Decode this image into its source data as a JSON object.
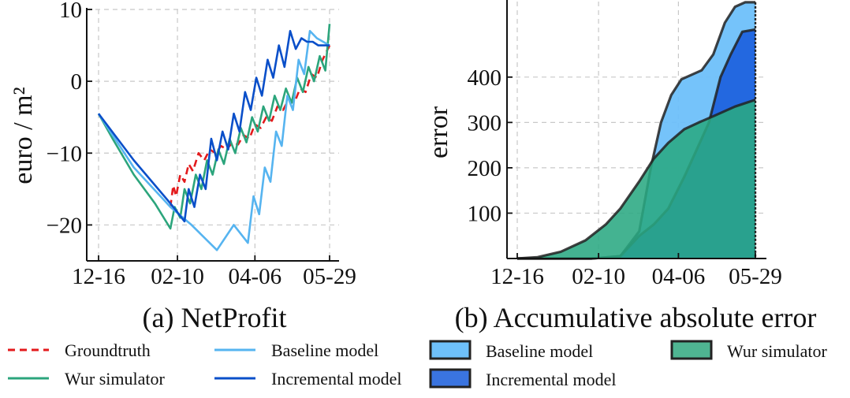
{
  "captions": {
    "a": "(a) NetProfit",
    "b": "(b) Accumulative absolute error"
  },
  "colors": {
    "groundtruth": "#e31a1c",
    "wur": "#2ca57c",
    "baseline": "#56b4f0",
    "incremental": "#0a4fc9",
    "area_baseline": "#6ec0fa",
    "area_incremental": "#1f63de",
    "area_wur": "#2aa882"
  },
  "legend": [
    {
      "label": "Groundtruth",
      "kind": "line",
      "color": "#e31a1c",
      "dash": true
    },
    {
      "label": "Wur simulator",
      "kind": "line",
      "color": "#2ca57c",
      "dash": false
    },
    {
      "label": "Baseline model",
      "kind": "line",
      "color": "#56b4f0",
      "dash": false
    },
    {
      "label": "Incremental model",
      "kind": "line",
      "color": "#0a4fc9",
      "dash": false
    },
    {
      "label": "Baseline model",
      "kind": "patch",
      "color": "#6ec0fa"
    },
    {
      "label": "Incremental model",
      "kind": "patch",
      "color": "#3a74e0"
    },
    {
      "label": "Wur simulator",
      "kind": "patch",
      "color": "#4fb592"
    }
  ],
  "chart_data": [
    {
      "type": "line",
      "title": "(a) NetProfit",
      "ylabel": "euro / m²",
      "xlabel": "",
      "x_ticks": [
        "12-16",
        "02-10",
        "04-06",
        "05-29"
      ],
      "x_range": [
        "12-16",
        "05-29"
      ],
      "ylim": [
        -25,
        10
      ],
      "y_ticks": [
        10,
        0,
        -10,
        -20
      ],
      "y_tick_labels": [
        "10",
        "0",
        "−10",
        "−20"
      ],
      "grid": true,
      "series": [
        {
          "name": "Groundtruth",
          "style": "dashed",
          "x": [
            "02-05",
            "02-07",
            "02-09",
            "02-12",
            "02-15",
            "02-18",
            "02-21",
            "02-25",
            "03-01",
            "03-05",
            "03-09",
            "03-13",
            "03-17",
            "03-21",
            "03-25",
            "03-29",
            "04-02",
            "04-06",
            "04-10",
            "04-14",
            "04-18",
            "04-22",
            "04-26",
            "04-30",
            "05-04",
            "05-08",
            "05-12",
            "05-16",
            "05-20",
            "05-24",
            "05-29"
          ],
          "y": [
            -17.5,
            -14.5,
            -16,
            -13,
            -14,
            -11.5,
            -12.5,
            -10,
            -11,
            -9.5,
            -10,
            -9,
            -9.5,
            -8.5,
            -8.8,
            -7.5,
            -8,
            -6,
            -6.5,
            -5,
            -5.5,
            -3.5,
            -4,
            -2.5,
            -3,
            -1,
            -1.5,
            1,
            0.5,
            3,
            5
          ]
        },
        {
          "name": "Wur simulator",
          "style": "solid",
          "x": [
            "12-16",
            "12-26",
            "01-10",
            "01-25",
            "02-05",
            "02-08",
            "02-12",
            "02-15",
            "02-19",
            "02-23",
            "02-27",
            "03-03",
            "03-07",
            "03-11",
            "03-15",
            "03-19",
            "03-23",
            "03-27",
            "03-31",
            "04-04",
            "04-08",
            "04-12",
            "04-16",
            "04-20",
            "04-24",
            "04-28",
            "05-02",
            "05-06",
            "05-10",
            "05-14",
            "05-18",
            "05-22",
            "05-26",
            "05-29"
          ],
          "y": [
            -4.5,
            -8,
            -13,
            -17,
            -20.5,
            -17.5,
            -19,
            -15,
            -17,
            -13,
            -15,
            -11,
            -13,
            -9.5,
            -11.5,
            -8,
            -10,
            -6.5,
            -8.5,
            -5,
            -7,
            -3.5,
            -5.5,
            -2,
            -4,
            -1,
            -3,
            0.5,
            -1.5,
            2,
            0,
            3.5,
            1.5,
            8
          ]
        },
        {
          "name": "Baseline model",
          "style": "solid",
          "x": [
            "12-16",
            "01-10",
            "02-05",
            "02-20",
            "03-10",
            "03-22",
            "04-01",
            "04-05",
            "04-09",
            "04-13",
            "04-17",
            "04-21",
            "04-25",
            "04-29",
            "05-03",
            "05-07",
            "05-11",
            "05-15",
            "05-20",
            "05-29"
          ],
          "y": [
            -4.5,
            -12,
            -17.5,
            -20,
            -23.5,
            -20,
            -22.5,
            -16,
            -18.5,
            -12,
            -14,
            -7,
            -9,
            -2,
            -4,
            3,
            1,
            7,
            6,
            5
          ]
        },
        {
          "name": "Incremental model",
          "style": "solid",
          "x": [
            "12-16",
            "01-10",
            "02-05",
            "02-15",
            "02-18",
            "02-22",
            "02-26",
            "03-02",
            "03-06",
            "03-10",
            "03-14",
            "03-18",
            "03-22",
            "03-26",
            "03-30",
            "04-03",
            "04-07",
            "04-11",
            "04-15",
            "04-19",
            "04-23",
            "04-27",
            "05-01",
            "05-05",
            "05-09",
            "05-13",
            "05-17",
            "05-21",
            "05-29"
          ],
          "y": [
            -4.5,
            -11,
            -17,
            -19.5,
            -15,
            -17.5,
            -13,
            -15,
            -8,
            -11,
            -7,
            -9.5,
            -4.5,
            -7,
            -1.5,
            -4,
            0.5,
            -2,
            3,
            0.5,
            5,
            2,
            7,
            4.5,
            6,
            5.5,
            5.5,
            5,
            5
          ]
        }
      ]
    },
    {
      "type": "area",
      "title": "(b) Accumulative absolute error",
      "ylabel": "error",
      "xlabel": "",
      "x_ticks": [
        "12-16",
        "02-10",
        "04-06",
        "05-29"
      ],
      "y_ticks": [
        100,
        200,
        300,
        400
      ],
      "ylim": [
        0,
        570
      ],
      "grid": true,
      "series": [
        {
          "name": "Baseline model",
          "x": [
            "12-16",
            "01-10",
            "02-05",
            "02-25",
            "03-10",
            "03-18",
            "03-25",
            "04-01",
            "04-08",
            "04-15",
            "04-22",
            "04-30",
            "05-08",
            "05-15",
            "05-22",
            "05-29"
          ],
          "y": [
            0,
            0,
            0,
            5,
            60,
            200,
            300,
            360,
            395,
            405,
            415,
            450,
            520,
            555,
            565,
            565
          ]
        },
        {
          "name": "Incremental model",
          "x": [
            "12-16",
            "01-10",
            "02-05",
            "02-25",
            "03-10",
            "03-20",
            "03-30",
            "04-10",
            "04-20",
            "04-27",
            "05-05",
            "05-12",
            "05-20",
            "05-29"
          ],
          "y": [
            0,
            0,
            0,
            5,
            50,
            75,
            110,
            180,
            250,
            300,
            400,
            450,
            500,
            505
          ]
        },
        {
          "name": "Wur simulator",
          "x": [
            "12-16",
            "12-30",
            "01-15",
            "02-01",
            "02-15",
            "02-25",
            "03-10",
            "03-20",
            "03-30",
            "04-10",
            "04-20",
            "05-01",
            "05-15",
            "05-29"
          ],
          "y": [
            0,
            3,
            15,
            40,
            75,
            110,
            170,
            220,
            255,
            285,
            300,
            315,
            335,
            350
          ]
        }
      ]
    }
  ]
}
